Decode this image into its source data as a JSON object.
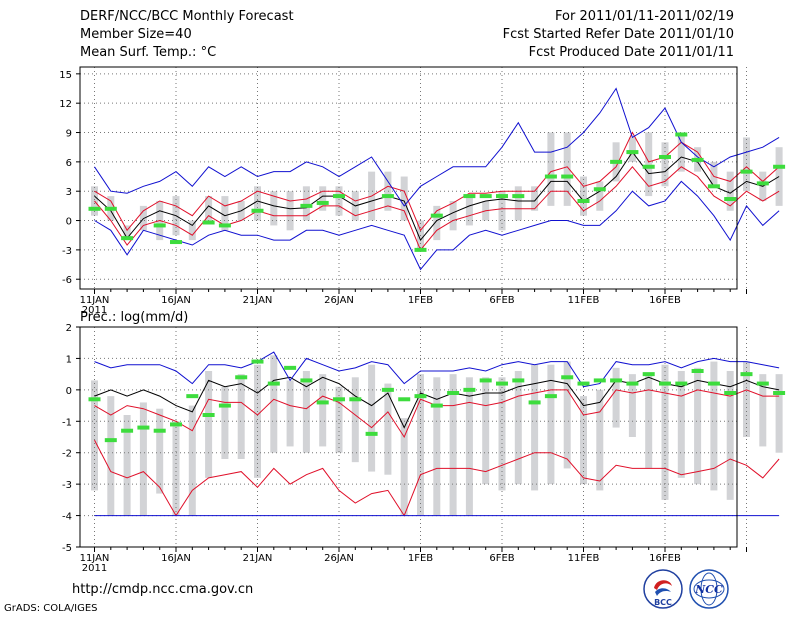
{
  "header": {
    "left_lines": [
      "DERF/NCC/BCC Monthly Forecast",
      "Member Size=40",
      "Mean Surf. Temp.: °C"
    ],
    "right_lines": [
      "For 2011/01/11-2011/02/19",
      "Fcst Started Refer Date 2011/01/10",
      "Fcst Produced Date 2011/01/11"
    ]
  },
  "footer": {
    "url": "http://cmdp.ncc.cma.gov.cn",
    "credit": "GrADS: COLA/IGES",
    "logo_left": "BCC",
    "logo_right": "NCC"
  },
  "colors": {
    "mean": "#000000",
    "spread": "#e0102a",
    "extreme": "#1010d0",
    "obs": "#3ddc3d",
    "box": "#d2d3d6",
    "grid": "#777777"
  },
  "chart_data": [
    {
      "type": "line",
      "title": "Mean Surf. Temp.: °C",
      "x_labels": [
        "11JAN",
        "16JAN",
        "21JAN",
        "26JAN",
        "1FEB",
        "6FEB",
        "11FEB",
        "16FEB"
      ],
      "x_year": "2011",
      "days": 40,
      "ylim": [
        -7,
        15.7
      ],
      "yticks": [
        -6,
        -3,
        0,
        3,
        6,
        9,
        12,
        15
      ],
      "series": [
        {
          "name": "ensemble mean",
          "color": "#000000",
          "values": [
            2.5,
            1.0,
            -1.8,
            0.2,
            1.0,
            0.5,
            -0.5,
            1.5,
            0.5,
            1.0,
            2.0,
            1.5,
            1.2,
            1.3,
            2.5,
            2.5,
            1.5,
            2.0,
            2.5,
            2.0,
            -2.0,
            0.0,
            0.8,
            1.5,
            2.0,
            2.2,
            2.0,
            2.0,
            4.0,
            4.0,
            2.0,
            3.0,
            4.5,
            7.0,
            4.8,
            5.0,
            6.5,
            6.0,
            3.5,
            2.8,
            4.0,
            3.5,
            4.5
          ]
        },
        {
          "name": "upper spread",
          "color": "#e0102a",
          "values": [
            3.0,
            2.0,
            -1.0,
            1.0,
            2.0,
            1.5,
            0.5,
            2.5,
            1.5,
            2.0,
            3.0,
            2.5,
            2.0,
            2.2,
            3.0,
            3.0,
            2.0,
            2.5,
            3.5,
            3.0,
            -1.0,
            1.0,
            1.8,
            2.8,
            2.8,
            3.0,
            3.0,
            3.0,
            5.0,
            5.5,
            3.5,
            4.0,
            5.5,
            9.0,
            6.0,
            6.5,
            8.0,
            7.0,
            4.5,
            4.0,
            5.5,
            4.0,
            5.5
          ]
        },
        {
          "name": "lower spread",
          "color": "#e0102a",
          "values": [
            2.0,
            0.0,
            -2.5,
            -0.5,
            0.0,
            -0.5,
            -1.5,
            0.5,
            -0.5,
            0.0,
            1.0,
            0.5,
            0.5,
            0.5,
            1.5,
            1.5,
            0.5,
            1.0,
            1.5,
            1.0,
            -3.0,
            -1.0,
            0.0,
            0.5,
            1.0,
            1.2,
            1.2,
            1.2,
            3.0,
            3.0,
            1.0,
            2.0,
            3.5,
            5.5,
            3.5,
            4.0,
            5.5,
            4.5,
            2.5,
            1.5,
            3.0,
            2.0,
            3.0
          ]
        },
        {
          "name": "maximum",
          "color": "#1010d0",
          "values": [
            5.5,
            3.0,
            2.8,
            3.5,
            4.0,
            5.0,
            3.5,
            5.5,
            4.5,
            5.5,
            4.5,
            5.0,
            5.0,
            6.0,
            5.5,
            4.5,
            5.5,
            6.5,
            4.0,
            1.5,
            3.5,
            4.5,
            5.5,
            5.5,
            5.5,
            7.5,
            10.0,
            7.0,
            7.0,
            7.5,
            9.0,
            11.0,
            13.5,
            8.5,
            9.5,
            11.5,
            8.0,
            6.5,
            5.5,
            6.5,
            7.0,
            7.5,
            8.5
          ]
        },
        {
          "name": "minimum",
          "color": "#1010d0",
          "values": [
            0.0,
            -1.0,
            -3.5,
            -1.0,
            -1.5,
            -2.0,
            -2.5,
            -1.5,
            -1.0,
            -1.5,
            -1.5,
            -2.0,
            -2.0,
            -1.0,
            -1.0,
            -1.5,
            -1.0,
            -0.5,
            -1.0,
            -1.5,
            -5.0,
            -3.0,
            -3.0,
            -1.5,
            -1.0,
            -1.5,
            -1.0,
            -0.5,
            0.0,
            0.0,
            -0.5,
            -0.5,
            1.0,
            3.0,
            1.5,
            2.0,
            4.0,
            2.5,
            0.5,
            -2.0,
            1.5,
            -0.5,
            1.0
          ]
        }
      ],
      "observed": [
        1.2,
        1.2,
        -1.8,
        null,
        -0.5,
        -2.2,
        null,
        -0.2,
        -0.5,
        null,
        1.0,
        null,
        null,
        1.5,
        1.8,
        2.5,
        null,
        null,
        2.5,
        null,
        -3.0,
        0.5,
        null,
        2.5,
        2.5,
        2.5,
        2.5,
        null,
        4.5,
        4.5,
        2.0,
        3.2,
        6.0,
        7.0,
        5.5,
        6.5,
        8.8,
        6.2,
        3.5,
        2.2,
        5.0,
        3.8,
        5.5
      ],
      "box_ranges": [
        [
          0.5,
          3.5
        ],
        [
          0,
          2.5
        ],
        [
          -2,
          -0.5
        ],
        [
          -1,
          1.5
        ],
        [
          -2,
          2
        ],
        [
          -1.5,
          2.5
        ],
        [
          -2,
          0
        ],
        [
          0,
          2.5
        ],
        [
          -1,
          2.5
        ],
        [
          0,
          2
        ],
        [
          0,
          3.5
        ],
        [
          -0.5,
          3
        ],
        [
          -1,
          3
        ],
        [
          0,
          3.5
        ],
        [
          1,
          3.5
        ],
        [
          0.5,
          3.5
        ],
        [
          0,
          3
        ],
        [
          0,
          5
        ],
        [
          1,
          5
        ],
        [
          0,
          4.5
        ],
        [
          -3,
          0
        ],
        [
          -2,
          1.5
        ],
        [
          -1,
          2
        ],
        [
          -0.5,
          2.5
        ],
        [
          0,
          2
        ],
        [
          -1,
          3
        ],
        [
          0,
          3.5
        ],
        [
          1,
          3.5
        ],
        [
          1.5,
          9
        ],
        [
          1.5,
          9
        ],
        [
          0.5,
          4.5
        ],
        [
          1,
          4
        ],
        [
          4,
          8
        ],
        [
          6,
          8.5
        ],
        [
          2.5,
          9
        ],
        [
          3.5,
          8
        ],
        [
          5,
          9
        ],
        [
          5,
          7.5
        ],
        [
          3.5,
          6
        ],
        [
          1,
          5
        ],
        [
          3,
          8.5
        ],
        [
          2,
          5
        ],
        [
          1.5,
          7.5
        ]
      ]
    },
    {
      "type": "line",
      "title": "Prec.: log(mm/d)",
      "x_labels": [
        "11JAN",
        "16JAN",
        "21JAN",
        "26JAN",
        "1FEB",
        "6FEB",
        "11FEB",
        "16FEB"
      ],
      "x_year": "2011",
      "days": 40,
      "ylim": [
        -5,
        2
      ],
      "yticks": [
        -5,
        -4,
        -3,
        -2,
        -1,
        0,
        1,
        2
      ],
      "series": [
        {
          "name": "ensemble mean",
          "color": "#000000",
          "values": [
            -0.2,
            0.0,
            -0.2,
            0.0,
            -0.2,
            -0.5,
            -0.7,
            0.3,
            0.1,
            0.2,
            -0.1,
            0.3,
            0.4,
            0.1,
            0.4,
            0.2,
            -0.2,
            -0.5,
            -0.1,
            -1.2,
            -0.1,
            -0.3,
            -0.1,
            -0.2,
            -0.1,
            -0.1,
            0.1,
            0.2,
            0.3,
            0.2,
            -0.5,
            -0.4,
            0.3,
            0.2,
            0.4,
            0.2,
            0.1,
            0.3,
            0.2,
            0.1,
            0.3,
            0.1,
            0.0
          ]
        },
        {
          "name": "upper spread",
          "color": "#e0102a",
          "values": [
            -0.5,
            -0.8,
            -0.5,
            -0.6,
            -0.8,
            -1.0,
            -1.3,
            -0.3,
            -0.4,
            -0.4,
            -0.8,
            -0.3,
            -0.5,
            -0.6,
            -0.2,
            -0.4,
            -0.8,
            -1.2,
            -0.7,
            -1.5,
            -0.3,
            -0.5,
            -0.5,
            -0.4,
            -0.5,
            -0.4,
            -0.2,
            -0.1,
            0.0,
            0.0,
            -0.8,
            -0.7,
            0.0,
            -0.1,
            0.0,
            -0.1,
            -0.2,
            0.0,
            -0.1,
            -0.2,
            0.0,
            -0.2,
            -0.2
          ]
        },
        {
          "name": "lower spread",
          "color": "#e0102a",
          "values": [
            -1.6,
            -2.6,
            -2.8,
            -2.6,
            -3.1,
            -4.0,
            -3.2,
            -2.8,
            -2.7,
            -2.6,
            -3.1,
            -2.5,
            -3.0,
            -2.7,
            -2.5,
            -3.2,
            -3.6,
            -3.3,
            -3.2,
            -4.0,
            -2.7,
            -2.5,
            -2.5,
            -2.5,
            -2.6,
            -2.4,
            -2.2,
            -2.0,
            -2.0,
            -2.2,
            -2.8,
            -2.9,
            -2.4,
            -2.5,
            -2.5,
            -2.5,
            -2.7,
            -2.6,
            -2.5,
            -2.2,
            -2.4,
            -2.8,
            -2.2
          ]
        },
        {
          "name": "maximum",
          "color": "#1010d0",
          "values": [
            0.9,
            0.7,
            0.8,
            0.8,
            0.8,
            0.6,
            0.2,
            0.8,
            0.8,
            0.7,
            0.9,
            1.2,
            0.3,
            1.0,
            0.8,
            0.6,
            0.7,
            0.9,
            0.8,
            0.2,
            0.6,
            0.6,
            0.6,
            0.7,
            0.6,
            0.8,
            0.9,
            0.8,
            0.9,
            0.9,
            0.1,
            0.2,
            0.9,
            0.8,
            0.8,
            0.9,
            0.7,
            0.9,
            1.0,
            0.9,
            0.9,
            0.8,
            0.7
          ]
        },
        {
          "name": "minimum",
          "color": "#1010d0",
          "values": [
            -4,
            -4,
            -4,
            -4,
            -4,
            -4,
            -4,
            -4,
            -4,
            -4,
            -4,
            -4,
            -4,
            -4,
            -4,
            -4,
            -4,
            -4,
            -4,
            -4,
            -4,
            -4,
            -4,
            -4,
            -4,
            -4,
            -4,
            -4,
            -4,
            -4,
            -4,
            -4,
            -4,
            -4,
            -4,
            -4,
            -4,
            -4,
            -4,
            -4,
            -4,
            -4,
            -4
          ]
        }
      ],
      "observed": [
        -0.3,
        -1.6,
        -1.3,
        -1.2,
        -1.3,
        -1.1,
        -0.2,
        -0.8,
        -0.5,
        0.4,
        0.9,
        0.2,
        0.7,
        0.3,
        -0.4,
        -0.3,
        -0.3,
        -1.4,
        0.0,
        -0.3,
        -0.2,
        -0.5,
        -0.1,
        0.0,
        0.3,
        0.2,
        0.3,
        -0.4,
        -0.2,
        0.4,
        0.2,
        0.3,
        0.3,
        0.2,
        0.5,
        0.2,
        0.2,
        0.6,
        0.2,
        -0.1,
        0.5,
        0.2,
        -0.1
      ],
      "box_ranges": [
        [
          -3.2,
          0.3
        ],
        [
          -4,
          -0.2
        ],
        [
          -4,
          -0.8
        ],
        [
          -4,
          -0.4
        ],
        [
          -3.3,
          -0.6
        ],
        [
          -4,
          -1.0
        ],
        [
          -4,
          -0.5
        ],
        [
          -2.8,
          0.6
        ],
        [
          -2.2,
          0.1
        ],
        [
          -2.2,
          0.5
        ],
        [
          -2.8,
          0.8
        ],
        [
          -2.0,
          1.1
        ],
        [
          -1.8,
          0.3
        ],
        [
          -2.0,
          0.6
        ],
        [
          -1.8,
          0.5
        ],
        [
          -2.0,
          0.1
        ],
        [
          -2.3,
          0.4
        ],
        [
          -2.6,
          0.8
        ],
        [
          -2.7,
          0.2
        ],
        [
          -4,
          -0.9
        ],
        [
          -4,
          0.5
        ],
        [
          -4,
          0.4
        ],
        [
          -4,
          0.5
        ],
        [
          -4,
          0.4
        ],
        [
          -3.0,
          0.4
        ],
        [
          -3.2,
          0.4
        ],
        [
          -3.0,
          0.6
        ],
        [
          -3.2,
          0.8
        ],
        [
          -3.0,
          0.8
        ],
        [
          -2.5,
          0.9
        ],
        [
          -3.0,
          -0.2
        ],
        [
          -3.2,
          0.0
        ],
        [
          -1.2,
          0.7
        ],
        [
          -1.5,
          0.5
        ],
        [
          -2.5,
          0.5
        ],
        [
          -3.5,
          0.8
        ],
        [
          -2.8,
          0.6
        ],
        [
          -3.0,
          0.7
        ],
        [
          -3.2,
          0.9
        ],
        [
          -3.5,
          0.6
        ],
        [
          -1.5,
          0.9
        ],
        [
          -1.8,
          0.5
        ],
        [
          -2.0,
          0.5
        ]
      ]
    }
  ]
}
